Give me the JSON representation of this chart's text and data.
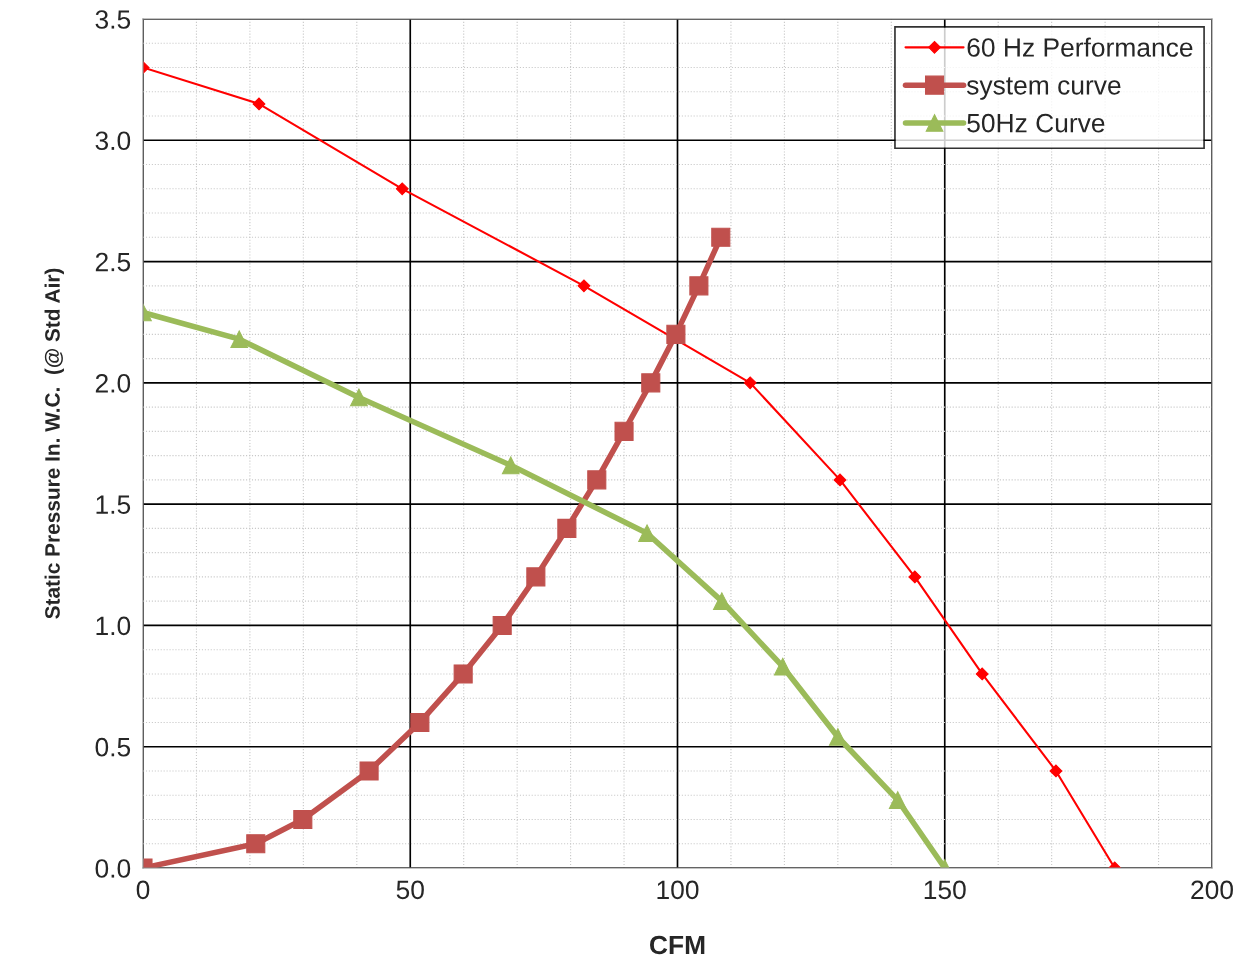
{
  "chart_data": {
    "type": "line",
    "xlabel": "CFM",
    "ylabel": "Static Pressure In. W.C.  (@ Std Air)",
    "xlim": [
      0,
      200
    ],
    "xticks": [
      0,
      50,
      100,
      150,
      200
    ],
    "ylim": [
      0,
      3.5
    ],
    "yticks": [
      {
        "value": 0,
        "label": "0.0"
      },
      {
        "value": 0.5,
        "label": "0.5"
      },
      {
        "value": 1,
        "label": "1.0"
      },
      {
        "value": 1.5,
        "label": "1.5"
      },
      {
        "value": 2,
        "label": "2.0"
      },
      {
        "value": 2.5,
        "label": "2.5"
      },
      {
        "value": 3,
        "label": "3.0"
      },
      {
        "value": 3.5,
        "label": "3.5"
      }
    ],
    "grid": true,
    "legend": "top right",
    "series": [
      {
        "name": "60 Hz Performance",
        "color": "#ff0000",
        "marker": "diamond",
        "x": [
          0,
          21.7,
          48.5,
          82.5,
          113.6,
          130.4,
          144.4,
          157,
          170.8,
          181.8
        ],
        "values": [
          3.3,
          3.15,
          2.8,
          2.4,
          2.0,
          1.6,
          1.2,
          0.8,
          0.4,
          0
        ]
      },
      {
        "name": "system curve",
        "color": "#c0504d",
        "marker": "square",
        "x": [
          0,
          21.1,
          29.9,
          42.3,
          51.8,
          59.9,
          67.2,
          73.5,
          79.3,
          84.9,
          90,
          95,
          99.7,
          104,
          108.1
        ],
        "values": [
          0,
          0.1,
          0.2,
          0.4,
          0.6,
          0.8,
          1.0,
          1.2,
          1.4,
          1.6,
          1.8,
          2.0,
          2.2,
          2.4,
          2.6
        ]
      },
      {
        "name": "50Hz Curve",
        "color": "#9bbb59",
        "marker": "triangle",
        "x": [
          0,
          18,
          40.4,
          68.8,
          94.3,
          108.3,
          119.7,
          130,
          141.2,
          150
        ],
        "values": [
          2.29,
          2.18,
          1.94,
          1.66,
          1.38,
          1.1,
          0.83,
          0.54,
          0.28,
          0
        ]
      }
    ]
  }
}
